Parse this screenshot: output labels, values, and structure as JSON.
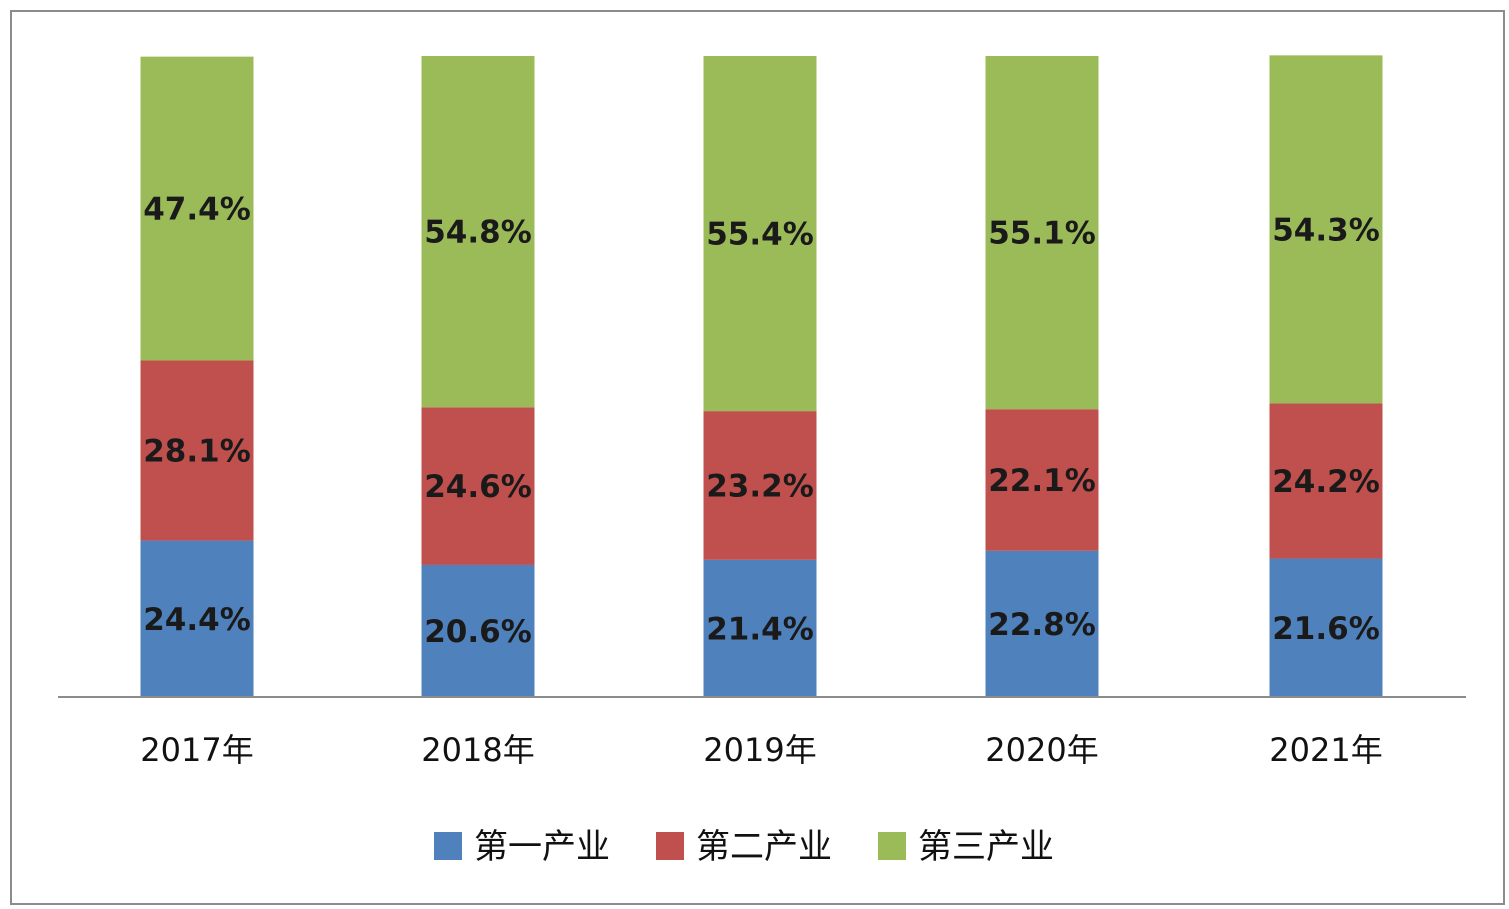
{
  "chart_data": {
    "type": "bar",
    "stacked": true,
    "categories": [
      "2017年",
      "2018年",
      "2019年",
      "2020年",
      "2021年"
    ],
    "series": [
      {
        "name": "第一产业",
        "color": "#4f81bd",
        "values": [
          24.4,
          20.6,
          21.4,
          22.8,
          21.6
        ],
        "labels": [
          "24.4%",
          "20.6%",
          "21.4%",
          "22.8%",
          "21.6%"
        ]
      },
      {
        "name": "第二产业",
        "color": "#c0504d",
        "values": [
          28.1,
          24.6,
          23.2,
          22.1,
          24.2
        ],
        "labels": [
          "28.1%",
          "24.6%",
          "23.2%",
          "22.1%",
          "24.2%"
        ]
      },
      {
        "name": "第三产业",
        "color": "#9bbb59",
        "values": [
          47.4,
          54.8,
          55.4,
          55.1,
          54.3
        ],
        "labels": [
          "47.4%",
          "54.8%",
          "55.4%",
          "55.1%",
          "54.3%"
        ]
      }
    ],
    "title": "",
    "xlabel": "",
    "ylabel": "",
    "ylim": [
      0,
      100
    ],
    "grid": false,
    "legend_position": "bottom",
    "axis_color": "#8c8c8c"
  }
}
